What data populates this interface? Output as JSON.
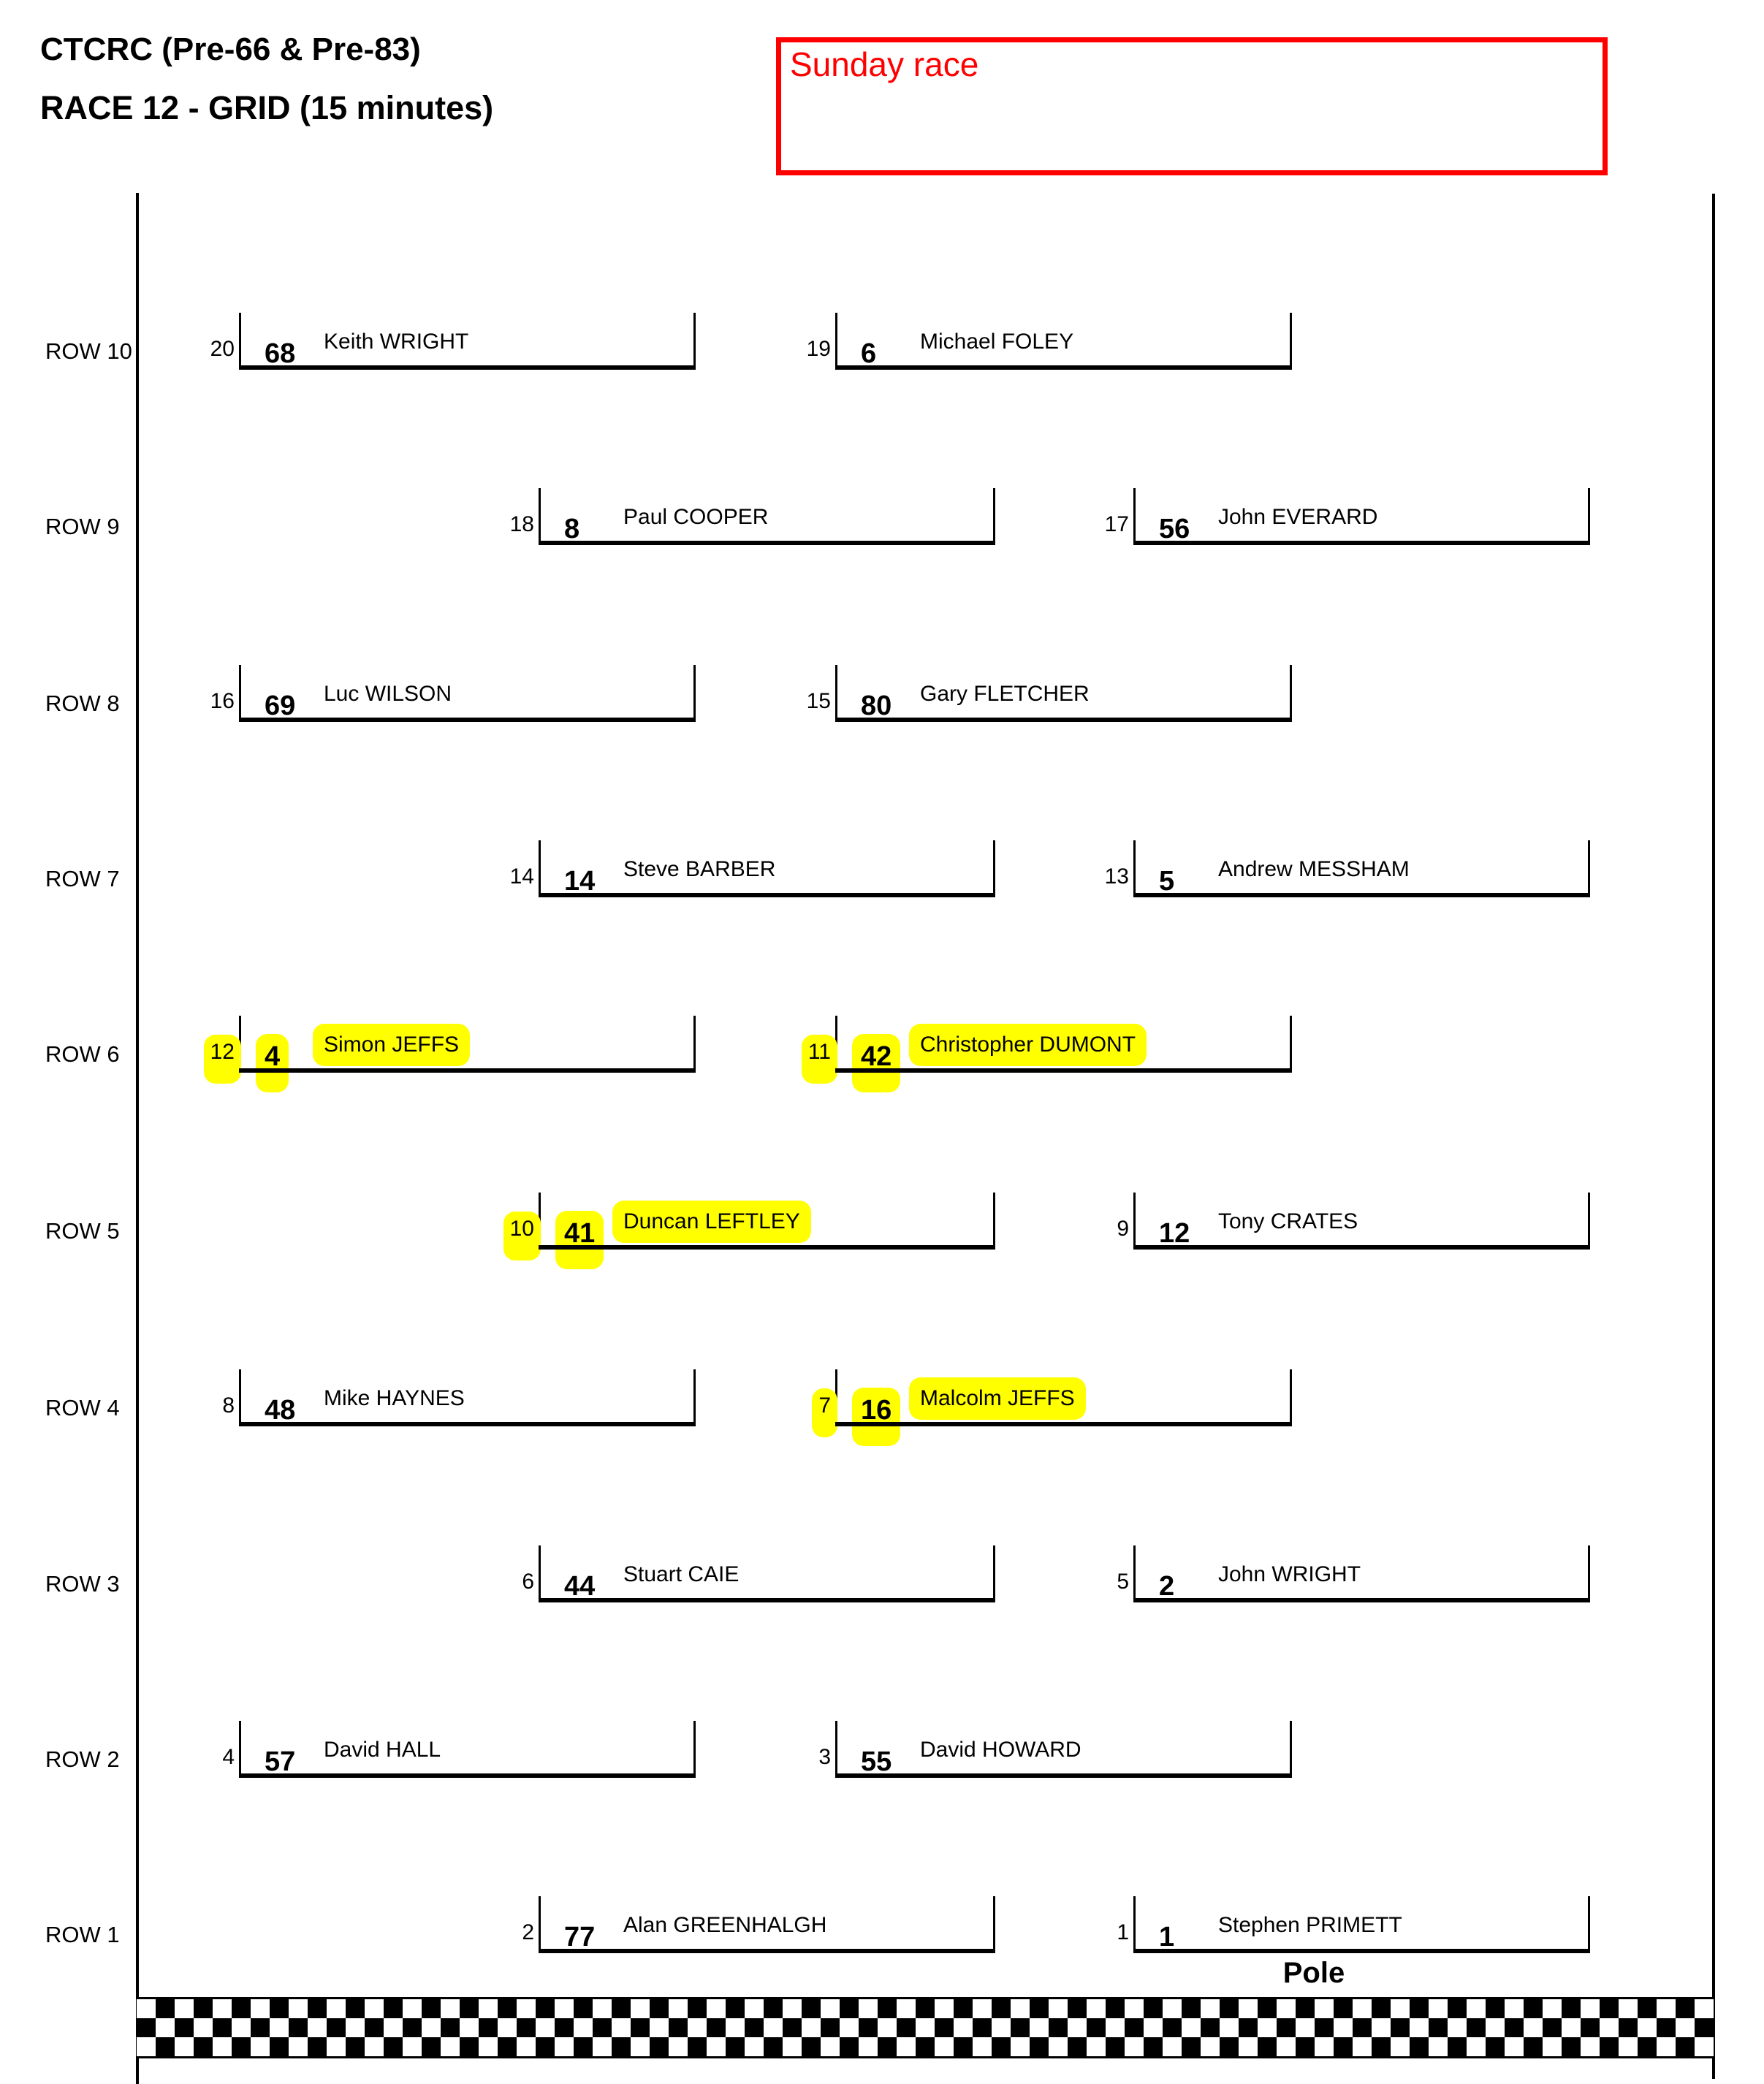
{
  "page": {
    "background": "#ffffff"
  },
  "header": {
    "title_line1": "CTCRC (Pre-66 & Pre-83)",
    "title_line2": "RACE 12 - GRID (15 minutes)",
    "note": {
      "text": "Sunday race",
      "color": "#ff0000",
      "border_color": "#ff0000"
    }
  },
  "grid": {
    "pole_label": "Pole",
    "highlight_color": "#ffff00",
    "rows": [
      {
        "label": "ROW 10",
        "slots": [
          {
            "position": "20",
            "car": "68",
            "driver": "Keith WRIGHT",
            "highlighted": false
          },
          {
            "position": "19",
            "car": "6",
            "driver": "Michael FOLEY",
            "highlighted": false
          }
        ]
      },
      {
        "label": "ROW 9",
        "slots": [
          {
            "position": "18",
            "car": "8",
            "driver": "Paul COOPER",
            "highlighted": false
          },
          {
            "position": "17",
            "car": "56",
            "driver": "John EVERARD",
            "highlighted": false
          }
        ]
      },
      {
        "label": "ROW 8",
        "slots": [
          {
            "position": "16",
            "car": "69",
            "driver": "Luc WILSON",
            "highlighted": false
          },
          {
            "position": "15",
            "car": "80",
            "driver": "Gary FLETCHER",
            "highlighted": false
          }
        ]
      },
      {
        "label": "ROW 7",
        "slots": [
          {
            "position": "14",
            "car": "14",
            "driver": "Steve BARBER",
            "highlighted": false
          },
          {
            "position": "13",
            "car": "5",
            "driver": "Andrew MESSHAM",
            "highlighted": false
          }
        ]
      },
      {
        "label": "ROW 6",
        "slots": [
          {
            "position": "12",
            "car": "4",
            "driver": "Simon JEFFS",
            "highlighted": true
          },
          {
            "position": "11",
            "car": "42",
            "driver": "Christopher DUMONT",
            "highlighted": true
          }
        ]
      },
      {
        "label": "ROW 5",
        "slots": [
          {
            "position": "10",
            "car": "41",
            "driver": "Duncan LEFTLEY",
            "highlighted": true
          },
          {
            "position": "9",
            "car": "12",
            "driver": "Tony CRATES",
            "highlighted": false
          }
        ]
      },
      {
        "label": "ROW 4",
        "slots": [
          {
            "position": "8",
            "car": "48",
            "driver": "Mike HAYNES",
            "highlighted": false
          },
          {
            "position": "7",
            "car": "16",
            "driver": "Malcolm JEFFS",
            "highlighted": true
          }
        ]
      },
      {
        "label": "ROW 3",
        "slots": [
          {
            "position": "6",
            "car": "44",
            "driver": "Stuart CAIE",
            "highlighted": false
          },
          {
            "position": "5",
            "car": "2",
            "driver": "John WRIGHT",
            "highlighted": false
          }
        ]
      },
      {
        "label": "ROW 2",
        "slots": [
          {
            "position": "4",
            "car": "57",
            "driver": "David HALL",
            "highlighted": false
          },
          {
            "position": "3",
            "car": "55",
            "driver": "David HOWARD",
            "highlighted": false
          }
        ]
      },
      {
        "label": "ROW 1",
        "slots": [
          {
            "position": "2",
            "car": "77",
            "driver": "Alan GREENHALGH",
            "highlighted": false
          },
          {
            "position": "1",
            "car": "1",
            "driver": "Stephen PRIMETT",
            "highlighted": false
          }
        ]
      }
    ]
  }
}
